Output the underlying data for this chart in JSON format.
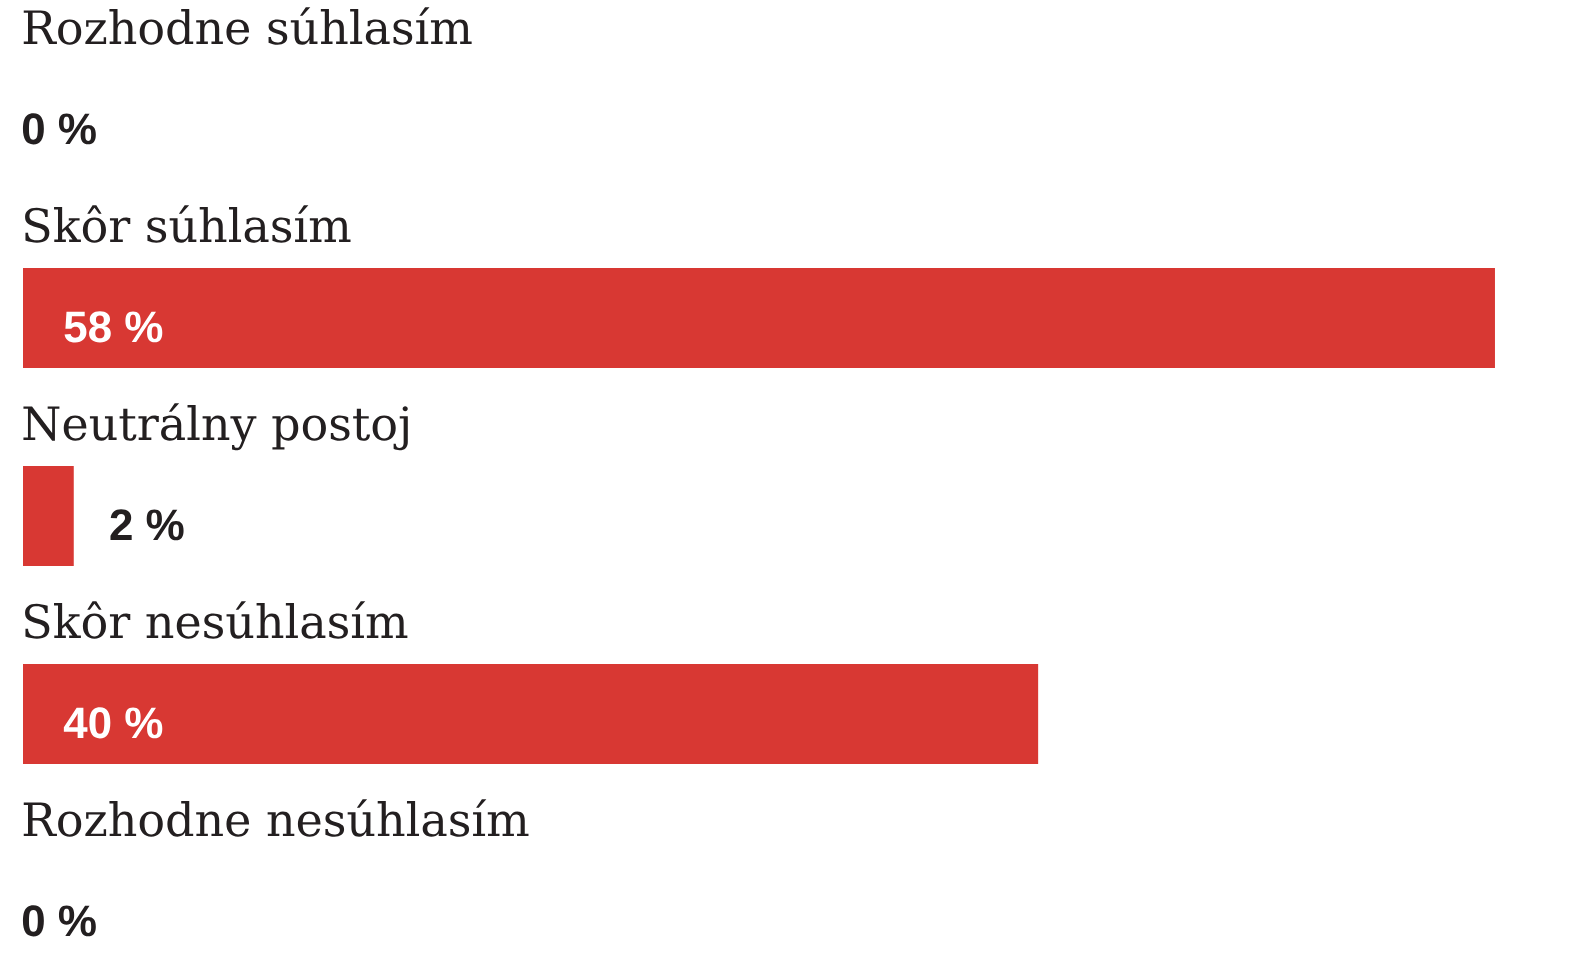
{
  "chart_data": {
    "type": "bar",
    "orientation": "horizontal",
    "categories": [
      "Rozhodne súhlasím",
      "Skôr súhlasím",
      "Neutrálny postoj",
      "Skôr nesúhlasím",
      "Rozhodne nesúhlasím"
    ],
    "values": [
      0,
      58,
      2,
      40,
      0
    ],
    "value_labels": [
      "0 %",
      "58 %",
      "2 %",
      "40 %",
      "0 %"
    ],
    "color": "#d83833"
  }
}
